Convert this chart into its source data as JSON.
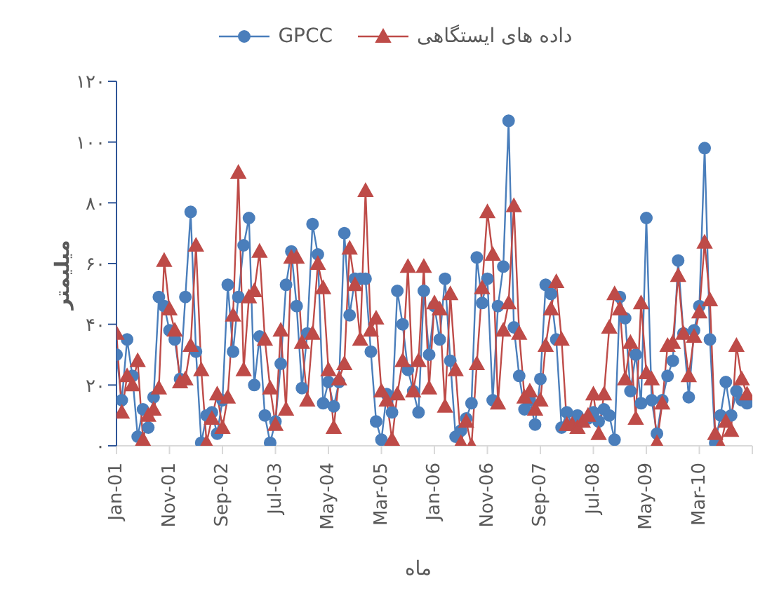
{
  "chart_data": {
    "type": "line",
    "xlabel": "ماه",
    "ylabel": "میلیمتر",
    "x": [
      "2001-01",
      "2001-02",
      "2001-03",
      "2001-04",
      "2001-05",
      "2001-06",
      "2001-07",
      "2001-08",
      "2001-09",
      "2001-10",
      "2001-11",
      "2001-12",
      "2002-01",
      "2002-02",
      "2002-03",
      "2002-04",
      "2002-05",
      "2002-06",
      "2002-07",
      "2002-08",
      "2002-09",
      "2002-10",
      "2002-11",
      "2002-12",
      "2003-01",
      "2003-02",
      "2003-03",
      "2003-04",
      "2003-05",
      "2003-06",
      "2003-07",
      "2003-08",
      "2003-09",
      "2003-10",
      "2003-11",
      "2003-12",
      "2004-01",
      "2004-02",
      "2004-03",
      "2004-04",
      "2004-05",
      "2004-06",
      "2004-07",
      "2004-08",
      "2004-09",
      "2004-10",
      "2004-11",
      "2004-12",
      "2005-01",
      "2005-02",
      "2005-03",
      "2005-04",
      "2005-05",
      "2005-06",
      "2005-07",
      "2005-08",
      "2005-09",
      "2005-10",
      "2005-11",
      "2005-12",
      "2006-01",
      "2006-02",
      "2006-03",
      "2006-04",
      "2006-05",
      "2006-06",
      "2006-07",
      "2006-08",
      "2006-09",
      "2006-10",
      "2006-11",
      "2006-12",
      "2007-01",
      "2007-02",
      "2007-03",
      "2007-04",
      "2007-05",
      "2007-06",
      "2007-07",
      "2007-08",
      "2007-09",
      "2007-10",
      "2007-11",
      "2007-12",
      "2008-01",
      "2008-02",
      "2008-03",
      "2008-04",
      "2008-05",
      "2008-06",
      "2008-07",
      "2008-08",
      "2008-09",
      "2008-10",
      "2008-11",
      "2008-12",
      "2009-01",
      "2009-02",
      "2009-03",
      "2009-04",
      "2009-05",
      "2009-06",
      "2009-07",
      "2009-08",
      "2009-09",
      "2009-10",
      "2009-11",
      "2009-12",
      "2010-01",
      "2010-02",
      "2010-03",
      "2010-04",
      "2010-05",
      "2010-06",
      "2010-07",
      "2010-08",
      "2010-09",
      "2010-10",
      "2010-11",
      "2010-12"
    ],
    "xlim": [
      "2001-01",
      "2011-01"
    ],
    "xticks": [
      {
        "value": "2001-01",
        "label": "Jan-01"
      },
      {
        "value": "2001-11",
        "label": "Nov-01"
      },
      {
        "value": "2002-09",
        "label": "Sep-02"
      },
      {
        "value": "2003-07",
        "label": "Jul-03"
      },
      {
        "value": "2004-05",
        "label": "May-04"
      },
      {
        "value": "2005-03",
        "label": "Mar-05"
      },
      {
        "value": "2006-01",
        "label": "Jan-06"
      },
      {
        "value": "2006-11",
        "label": "Nov-06"
      },
      {
        "value": "2007-09",
        "label": "Sep-07"
      },
      {
        "value": "2008-07",
        "label": "Jul-08"
      },
      {
        "value": "2009-05",
        "label": "May-09"
      },
      {
        "value": "2010-03",
        "label": "Mar-10"
      },
      {
        "value": "2011-01",
        "label": null
      }
    ],
    "series": [
      {
        "name": "GPCC",
        "color": "#4a7ebb",
        "marker": "circle",
        "values": [
          30,
          15,
          35,
          23,
          3,
          12,
          6,
          16,
          49,
          46,
          38,
          35,
          22,
          49,
          77,
          31,
          1,
          10,
          11,
          4,
          15,
          53,
          31,
          49,
          66,
          75,
          20,
          36,
          10,
          1,
          8,
          27,
          53,
          64,
          46,
          19,
          37,
          73,
          63,
          14,
          21,
          13,
          21,
          70,
          43,
          55,
          55,
          55,
          31,
          8,
          2,
          17,
          11,
          51,
          40,
          25,
          18,
          11,
          51,
          30,
          46,
          35,
          55,
          28,
          3,
          5,
          9,
          14,
          62,
          47,
          55,
          15,
          46,
          59,
          107,
          39,
          23,
          12,
          15,
          7,
          22,
          53,
          50,
          35,
          6,
          11,
          7,
          10,
          8,
          9,
          11,
          8,
          12,
          10,
          2,
          49,
          42,
          18,
          30,
          14,
          75,
          15,
          4,
          15,
          23,
          28,
          61,
          37,
          16,
          38,
          46,
          98,
          35,
          1,
          10,
          21,
          10,
          18,
          15,
          14
        ]
      },
      {
        "name": "داده های ایستگاهی",
        "color": "#be4b48",
        "marker": "triangle",
        "values": [
          37,
          11,
          23,
          20,
          28,
          2,
          10,
          12,
          19,
          61,
          45,
          38,
          21,
          22,
          33,
          66,
          25,
          1,
          9,
          17,
          6,
          16,
          43,
          90,
          25,
          49,
          51,
          64,
          35,
          19,
          7,
          38,
          12,
          62,
          62,
          34,
          15,
          37,
          60,
          52,
          25,
          6,
          22,
          27,
          65,
          53,
          35,
          84,
          38,
          42,
          18,
          15,
          2,
          17,
          28,
          59,
          18,
          28,
          59,
          19,
          47,
          45,
          13,
          50,
          25,
          1,
          8,
          0,
          27,
          52,
          77,
          63,
          14,
          38,
          47,
          79,
          37,
          16,
          18,
          12,
          15,
          33,
          45,
          54,
          35,
          7,
          7,
          6,
          8,
          10,
          17,
          4,
          17,
          39,
          50,
          45,
          22,
          34,
          9,
          47,
          24,
          22,
          1,
          14,
          33,
          34,
          56,
          37,
          23,
          36,
          44,
          67,
          48,
          4,
          0,
          8,
          5,
          33,
          22,
          17
        ]
      }
    ],
    "ylim": [
      0,
      120
    ],
    "yticks": [
      {
        "value": 0,
        "label": "۰"
      },
      {
        "value": 20,
        "label": "۲۰"
      },
      {
        "value": 40,
        "label": "۴۰"
      },
      {
        "value": 60,
        "label": "۶۰"
      },
      {
        "value": 80,
        "label": "۸۰"
      },
      {
        "value": 100,
        "label": "۱۰۰"
      },
      {
        "value": 120,
        "label": "۱۲۰"
      }
    ],
    "legend": "top",
    "grid": false
  }
}
